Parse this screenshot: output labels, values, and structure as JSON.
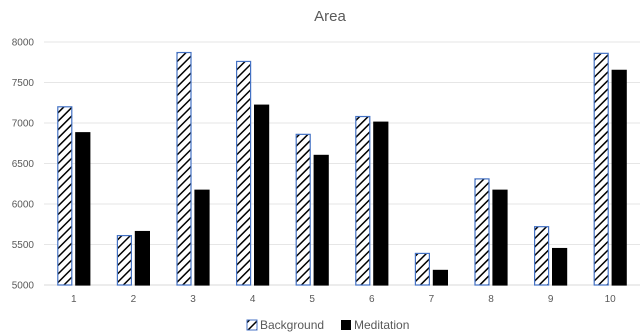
{
  "chart_data": {
    "type": "bar",
    "title": "Area",
    "xlabel": "",
    "ylabel": "",
    "categories": [
      "1",
      "2",
      "3",
      "4",
      "5",
      "6",
      "7",
      "8",
      "9",
      "10"
    ],
    "ylim": [
      5000,
      8000
    ],
    "yticks": [
      5000,
      5500,
      6000,
      6500,
      7000,
      7500,
      8000
    ],
    "grid": true,
    "legend_position": "bottom",
    "series": [
      {
        "name": "Background",
        "fill": "diagonal-hatch",
        "stroke": "#4472c4",
        "values": [
          7200,
          5610,
          7870,
          7760,
          6860,
          7080,
          5390,
          6310,
          5720,
          7860
        ]
      },
      {
        "name": "Meditation",
        "fill": "#000000",
        "stroke": "#000000",
        "values": [
          6880,
          5660,
          6170,
          7220,
          6600,
          7010,
          5180,
          6170,
          5450,
          7650
        ]
      }
    ]
  }
}
